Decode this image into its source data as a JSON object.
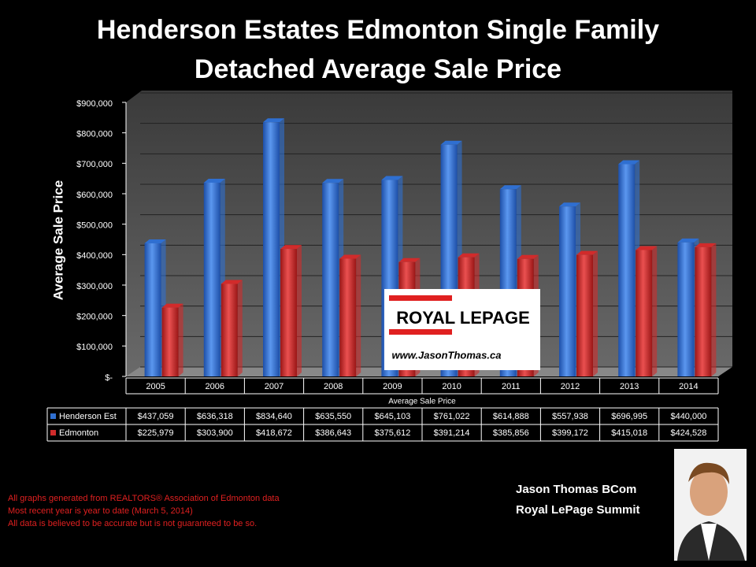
{
  "chart_data": {
    "type": "bar",
    "title": "Henderson Estates Edmonton Single Family Detached Average Sale Price",
    "y_label": "Average Sale Price",
    "x_label": "Average Sale Price",
    "categories": [
      "2005",
      "2006",
      "2007",
      "2008",
      "2009",
      "2010",
      "2011",
      "2012",
      "2013",
      "2014"
    ],
    "series": [
      {
        "name": "Henderson Est",
        "color": "#2f6fd1",
        "values": [
          437059,
          636318,
          834640,
          635550,
          645103,
          761022,
          614888,
          557938,
          696995,
          440000
        ],
        "value_labels": [
          "$437,059",
          "$636,318",
          "$834,640",
          "$635,550",
          "$645,103",
          "$761,022",
          "$614,888",
          "$557,938",
          "$696,995",
          "$440,000"
        ]
      },
      {
        "name": "Edmonton",
        "color": "#d12b2b",
        "values": [
          225979,
          303900,
          418672,
          386643,
          375612,
          391214,
          385856,
          399172,
          415018,
          424528
        ],
        "value_labels": [
          "$225,979",
          "$303,900",
          "$418,672",
          "$386,643",
          "$375,612",
          "$391,214",
          "$385,856",
          "$399,172",
          "$415,018",
          "$424,528"
        ]
      }
    ],
    "ylim": [
      0,
      900000
    ],
    "yticks": [
      {
        "value": 0,
        "label": "$-"
      },
      {
        "value": 100000,
        "label": "$100,000"
      },
      {
        "value": 200000,
        "label": "$200,000"
      },
      {
        "value": 300000,
        "label": "$300,000"
      },
      {
        "value": 400000,
        "label": "$400,000"
      },
      {
        "value": 500000,
        "label": "$500,000"
      },
      {
        "value": 600000,
        "label": "$600,000"
      },
      {
        "value": 700000,
        "label": "$700,000"
      },
      {
        "value": 800000,
        "label": "$800,000"
      },
      {
        "value": 900000,
        "label": "$900,000"
      }
    ],
    "grid": true
  },
  "logo": {
    "brand": "ROYAL LEPAGE",
    "website": "www.JasonThomas.ca"
  },
  "footnotes": [
    "All graphs generated from REALTORS® Association of Edmonton data",
    "Most recent year is year to date (March 5, 2014)",
    "All data is believed to be accurate but is not guaranteed to be so."
  ],
  "agent": {
    "name": "Jason Thomas BCom",
    "company": "Royal LePage Summit"
  }
}
